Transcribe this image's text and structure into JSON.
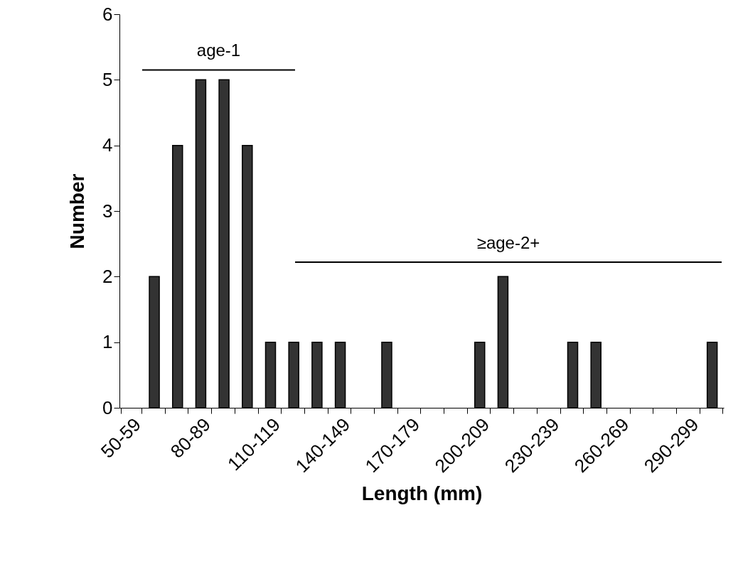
{
  "chart_data": {
    "type": "bar",
    "xlabel": "Length (mm)",
    "ylabel": "Number",
    "categories": [
      "50-59",
      null,
      null,
      "80-89",
      null,
      null,
      "110-119",
      null,
      null,
      "140-149",
      null,
      null,
      "170-179",
      null,
      null,
      "200-209",
      null,
      null,
      "230-239",
      null,
      null,
      "260-269",
      null,
      null,
      "290-299",
      null
    ],
    "values": [
      0,
      2,
      4,
      5,
      5,
      4,
      1,
      1,
      1,
      1,
      0,
      1,
      0,
      0,
      0,
      1,
      2,
      0,
      0,
      1,
      1,
      0,
      0,
      0,
      0,
      1
    ],
    "color": "#333333",
    "ylim": [
      0,
      6
    ],
    "yticks": [
      0,
      1,
      2,
      3,
      4,
      5,
      6
    ],
    "grid": false,
    "ref_lines": [
      {
        "axis": "y",
        "value": 5.15,
        "label": "age-1"
      },
      {
        "axis": "y",
        "value": 2.22,
        "label": "≥age-2+"
      }
    ]
  }
}
